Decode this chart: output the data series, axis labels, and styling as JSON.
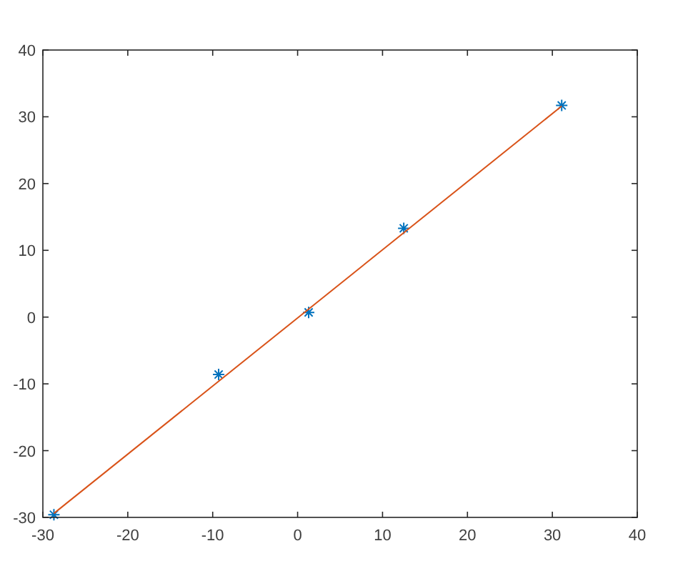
{
  "chart_data": {
    "type": "scatter",
    "xlim": [
      -30,
      40
    ],
    "ylim": [
      -30,
      40
    ],
    "xticks": [
      -30,
      -20,
      -10,
      0,
      10,
      20,
      30,
      40
    ],
    "yticks": [
      -30,
      -20,
      -10,
      0,
      10,
      20,
      30,
      40
    ],
    "grid": false,
    "series": [
      {
        "color": "#0072bd",
        "marker": "cross",
        "x": [
          -28.7,
          -9.3,
          1.3,
          12.5,
          31.1
        ],
        "values": [
          -29.6,
          -8.6,
          0.7,
          13.3,
          31.7
        ]
      },
      {
        "type": "line",
        "color": "#d95319",
        "marker": "none",
        "line_style": "solid",
        "x": [
          -28.7,
          31.1
        ],
        "values": [
          -29.4,
          31.6
        ]
      }
    ]
  }
}
